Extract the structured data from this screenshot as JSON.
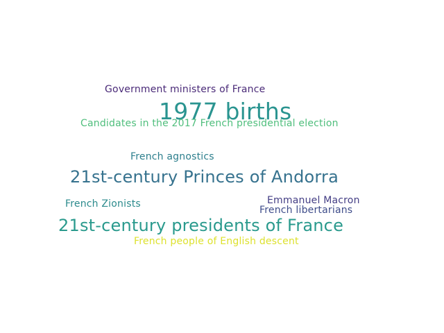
{
  "words": {
    "w1977": {
      "text": "1977 births",
      "color": "#2a9490"
    },
    "gov": {
      "text": "Government ministers of France",
      "color": "#4a2a78"
    },
    "candidates": {
      "text": "Candidates in the 2017 French presidential election",
      "color": "#4fbe7c"
    },
    "agnostics": {
      "text": "French agnostics",
      "color": "#2d7f8d"
    },
    "andorra": {
      "text": "21st-century Princes of Andorra",
      "color": "#36728e"
    },
    "zionists": {
      "text": "French Zionists",
      "color": "#2b8a8c"
    },
    "macron": {
      "text": "Emmanuel Macron",
      "color": "#433d84"
    },
    "libertarians": {
      "text": "French libertarians",
      "color": "#3e4c8a"
    },
    "presidents": {
      "text": "21st-century presidents of France",
      "color": "#2a9a8d"
    },
    "english": {
      "text": "French people of English descent",
      "color": "#dde12e"
    }
  }
}
